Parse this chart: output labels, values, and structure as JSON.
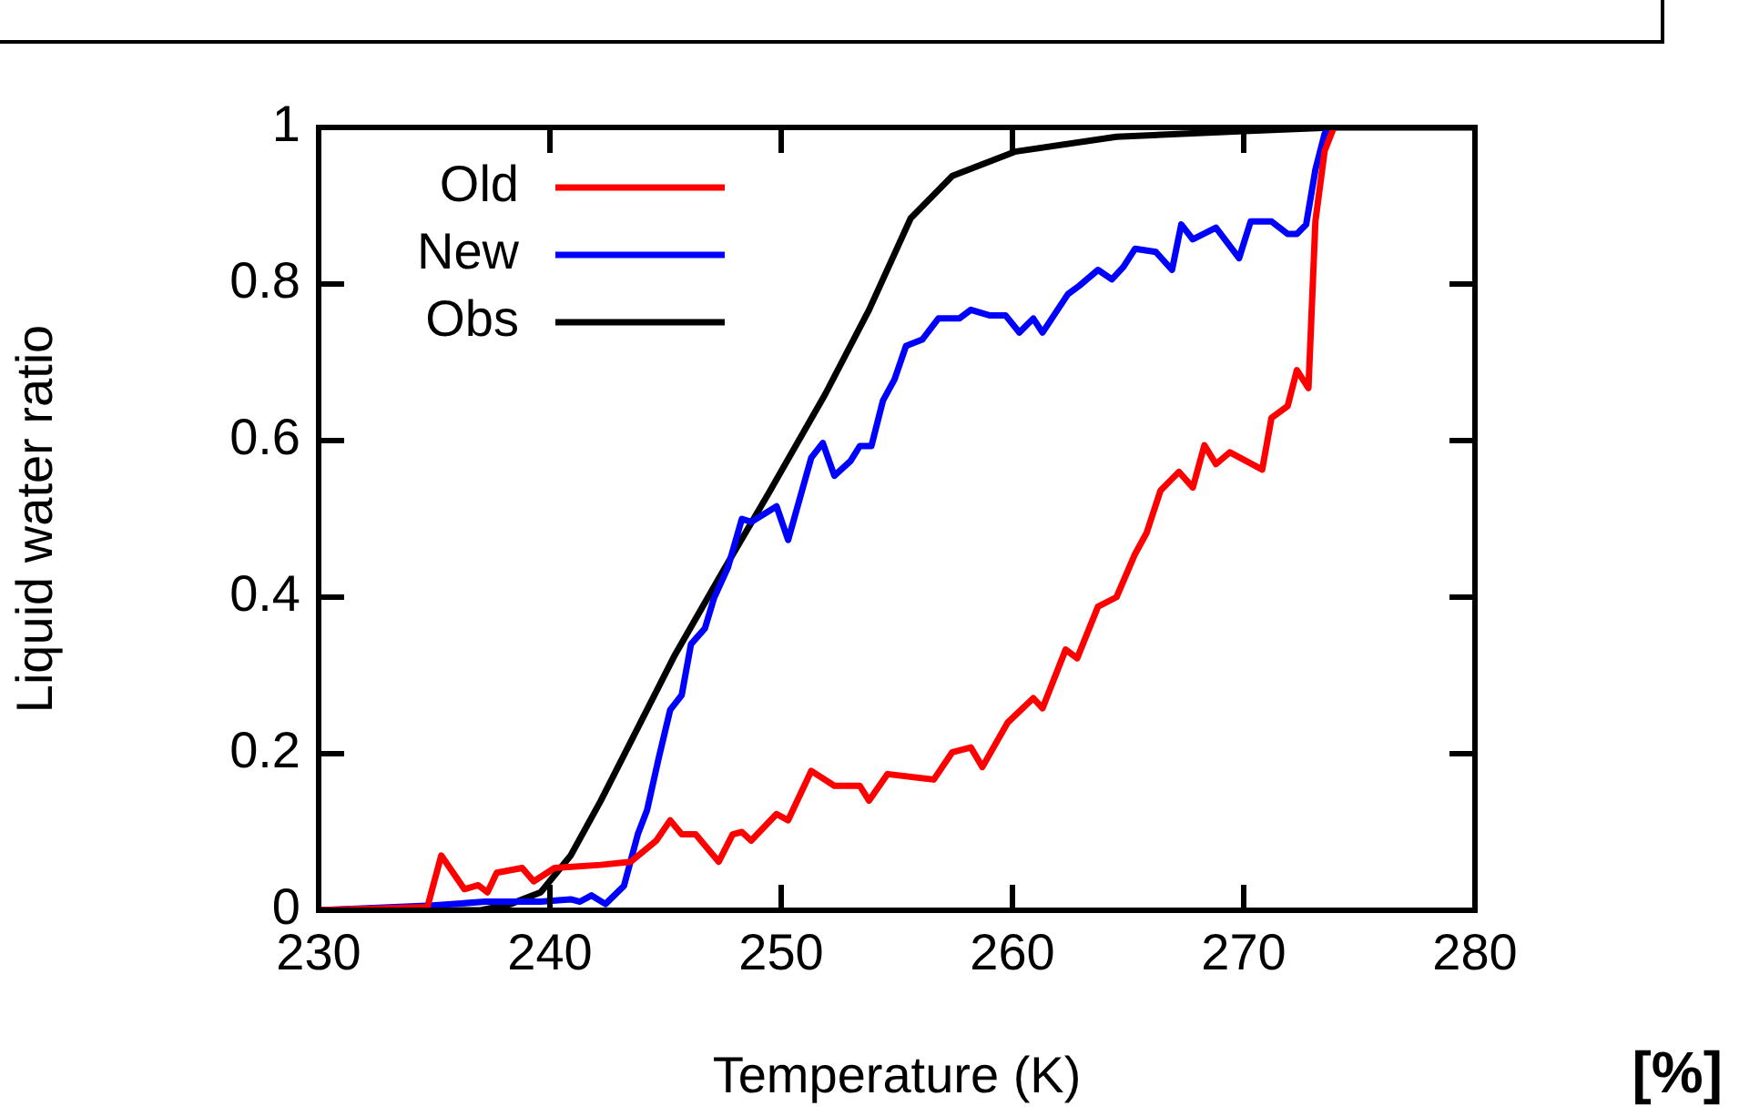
{
  "chart_data": {
    "type": "line",
    "xlabel": "Temperature (K)",
    "ylabel": "Liquid water ratio",
    "annotations": [
      "[%]"
    ],
    "xlim": [
      230,
      280
    ],
    "xticks": [
      230,
      240,
      250,
      260,
      270,
      280
    ],
    "ylim": [
      0,
      1
    ],
    "yticks": [
      0,
      0.2,
      0.4,
      0.6,
      0.8,
      1
    ],
    "legend": "top left",
    "marker": "none",
    "line_style": "solid",
    "series": [
      {
        "name": "Old",
        "color": "#ff0000",
        "x": [
          230,
          234.7,
          235.3,
          236.3,
          236.9,
          237.3,
          237.7,
          238.8,
          239.3,
          240.2,
          242.2,
          243.5,
          244.6,
          245.2,
          245.7,
          246.3,
          247.3,
          247.9,
          248.3,
          248.7,
          249.8,
          250.3,
          251.3,
          252.3,
          253.4,
          253.8,
          254.6,
          256.6,
          257.4,
          258.2,
          258.7,
          259.8,
          260.9,
          261.3,
          262.3,
          262.8,
          263.7,
          264.5,
          265.3,
          265.8,
          266.4,
          267.2,
          267.8,
          268.3,
          268.8,
          269.4,
          270.8,
          271.2,
          271.9,
          272.3,
          272.8,
          273.1,
          273.5,
          273.9
        ],
        "values": [
          0,
          0.004,
          0.07,
          0.027,
          0.032,
          0.023,
          0.048,
          0.054,
          0.037,
          0.054,
          0.058,
          0.062,
          0.089,
          0.115,
          0.097,
          0.097,
          0.062,
          0.097,
          0.1,
          0.089,
          0.123,
          0.115,
          0.178,
          0.159,
          0.159,
          0.14,
          0.174,
          0.167,
          0.202,
          0.208,
          0.183,
          0.24,
          0.271,
          0.258,
          0.333,
          0.322,
          0.388,
          0.4,
          0.455,
          0.482,
          0.536,
          0.56,
          0.54,
          0.594,
          0.57,
          0.585,
          0.563,
          0.629,
          0.644,
          0.69,
          0.667,
          0.88,
          0.97,
          1
        ]
      },
      {
        "name": "New",
        "color": "#0000ff",
        "x": [
          230,
          234.9,
          237.2,
          239.6,
          240.9,
          241.3,
          241.8,
          242.4,
          243.2,
          243.8,
          244.2,
          244.7,
          245.2,
          245.7,
          246.1,
          246.7,
          247.1,
          247.7,
          248.3,
          248.7,
          249.8,
          250.3,
          251.3,
          251.8,
          252.3,
          253.0,
          253.4,
          253.9,
          254.4,
          254.9,
          255.4,
          256.1,
          256.8,
          257.7,
          258.2,
          259.0,
          259.7,
          260.3,
          260.9,
          261.3,
          262.4,
          262.9,
          263.7,
          264.3,
          264.8,
          265.3,
          266.2,
          266.9,
          267.3,
          267.8,
          268.8,
          269.8,
          270.3,
          271.2,
          271.9,
          272.3,
          272.7,
          273.1,
          273.5,
          273.8
        ],
        "values": [
          0,
          0.006,
          0.011,
          0.011,
          0.014,
          0.011,
          0.019,
          0.008,
          0.031,
          0.097,
          0.128,
          0.194,
          0.256,
          0.275,
          0.34,
          0.36,
          0.399,
          0.438,
          0.5,
          0.496,
          0.516,
          0.473,
          0.578,
          0.597,
          0.555,
          0.574,
          0.593,
          0.593,
          0.651,
          0.678,
          0.721,
          0.729,
          0.756,
          0.756,
          0.767,
          0.76,
          0.76,
          0.738,
          0.756,
          0.738,
          0.787,
          0.798,
          0.818,
          0.806,
          0.822,
          0.845,
          0.841,
          0.818,
          0.876,
          0.857,
          0.872,
          0.833,
          0.88,
          0.88,
          0.864,
          0.864,
          0.876,
          0.946,
          0.992,
          1
        ]
      },
      {
        "name": "Obs",
        "color": "#000000",
        "x": [
          230,
          237,
          238.3,
          239.6,
          240.9,
          242.2,
          243.8,
          245.4,
          247.5,
          249.5,
          251.9,
          253.8,
          255.6,
          257.4,
          260.1,
          264.5,
          269.8,
          273.9,
          280
        ],
        "values": [
          0,
          0,
          0.008,
          0.023,
          0.07,
          0.14,
          0.233,
          0.326,
          0.434,
          0.535,
          0.659,
          0.767,
          0.884,
          0.938,
          0.969,
          0.988,
          0.995,
          1,
          1
        ]
      }
    ]
  }
}
